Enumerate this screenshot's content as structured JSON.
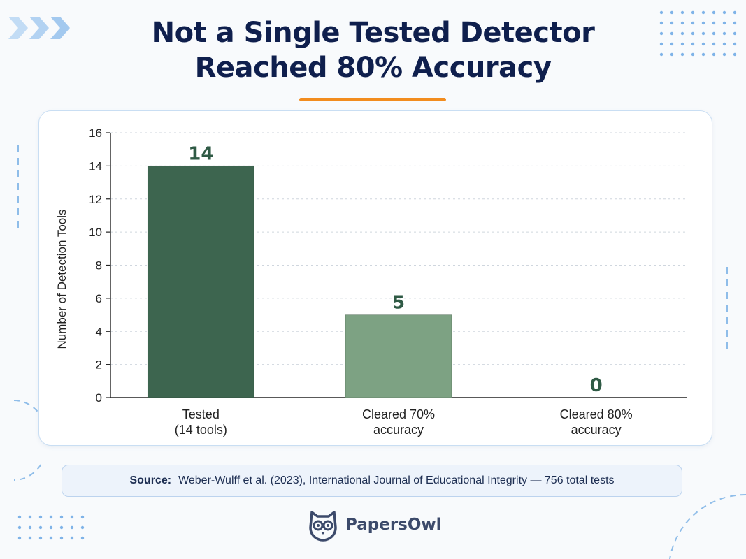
{
  "title": {
    "line1": "Not a Single Tested Detector",
    "line2": "Reached 80% Accuracy"
  },
  "colors": {
    "title": "#0f1f4d",
    "accent_underline": "#f28c1e",
    "bar_dark_green": "#3d654f",
    "bar_light_green": "#7da283",
    "value_label": "#2f5a45",
    "decor_blue": "#7fb3e8"
  },
  "chart_data": {
    "type": "bar",
    "categories": [
      [
        "Tested",
        "(14 tools)"
      ],
      [
        "Cleared 70%",
        "accuracy"
      ],
      [
        "Cleared 80%",
        "accuracy"
      ]
    ],
    "values": [
      14,
      5,
      0
    ],
    "value_labels": [
      "14",
      "5",
      "0"
    ],
    "bar_colors": [
      "#3d654f",
      "#7da283",
      "#7da283"
    ],
    "ylabel": "Number of Detection Tools",
    "ylim": [
      0,
      16
    ],
    "yticks": [
      0,
      2,
      4,
      6,
      8,
      10,
      12,
      14,
      16
    ],
    "grid": true
  },
  "source": {
    "label": "Source:",
    "text": "Weber-Wulff et al. (2023), International Journal of Educational Integrity — 756 total tests"
  },
  "brand": {
    "name": "PapersOwl",
    "icon": "owl-icon"
  },
  "decorations": {
    "top_left": "chevron-right-icon",
    "top_right": "dot-grid",
    "bottom_left": "dot-grid"
  }
}
